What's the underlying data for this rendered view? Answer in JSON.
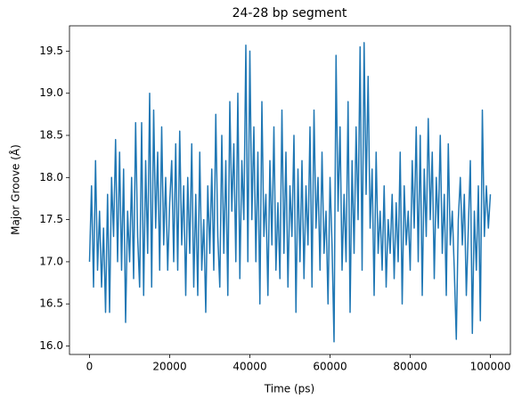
{
  "chart_data": {
    "type": "line",
    "title": "24-28 bp segment",
    "x_label": "Time (ps)",
    "y_label": "Major Groove (Å)",
    "x": [
      0,
      500,
      1000,
      1500,
      2000,
      2500,
      3000,
      3500,
      4000,
      4500,
      5000,
      5500,
      6000,
      6500,
      7000,
      7500,
      8000,
      8500,
      9000,
      9500,
      10000,
      10500,
      11000,
      11500,
      12000,
      12500,
      13000,
      13500,
      14000,
      14500,
      15000,
      15500,
      16000,
      16500,
      17000,
      17500,
      18000,
      18500,
      19000,
      19500,
      20000,
      20500,
      21000,
      21500,
      22000,
      22500,
      23000,
      23500,
      24000,
      24500,
      25000,
      25500,
      26000,
      26500,
      27000,
      27500,
      28000,
      28500,
      29000,
      29500,
      30000,
      30500,
      31000,
      31500,
      32000,
      32500,
      33000,
      33500,
      34000,
      34500,
      35000,
      35500,
      36000,
      36500,
      37000,
      37500,
      38000,
      38500,
      39000,
      39500,
      40000,
      40500,
      41000,
      41500,
      42000,
      42500,
      43000,
      43500,
      44000,
      44500,
      45000,
      45500,
      46000,
      46500,
      47000,
      47500,
      48000,
      48500,
      49000,
      49500,
      50000,
      50500,
      51000,
      51500,
      52000,
      52500,
      53000,
      53500,
      54000,
      54500,
      55000,
      55500,
      56000,
      56500,
      57000,
      57500,
      58000,
      58500,
      59000,
      59500,
      60000,
      60500,
      61000,
      61500,
      62000,
      62500,
      63000,
      63500,
      64000,
      64500,
      65000,
      65500,
      66000,
      66500,
      67000,
      67500,
      68000,
      68500,
      69000,
      69500,
      70000,
      70500,
      71000,
      71500,
      72000,
      72500,
      73000,
      73500,
      74000,
      74500,
      75000,
      75500,
      76000,
      76500,
      77000,
      77500,
      78000,
      78500,
      79000,
      79500,
      80000,
      80500,
      81000,
      81500,
      82000,
      82500,
      83000,
      83500,
      84000,
      84500,
      85000,
      85500,
      86000,
      86500,
      87000,
      87500,
      88000,
      88500,
      89000,
      89500,
      90000,
      90500,
      91000,
      91500,
      92000,
      92500,
      93000,
      93500,
      94000,
      94500,
      95000,
      95500,
      96000,
      96500,
      97000,
      97500,
      98000,
      98500,
      99000,
      99500,
      100000
    ],
    "series": [
      {
        "name": "Major Groove",
        "color": "#1f77b4",
        "values": [
          17.0,
          17.9,
          16.7,
          18.2,
          16.9,
          17.6,
          16.7,
          17.4,
          16.4,
          17.8,
          16.4,
          18.0,
          17.3,
          18.45,
          17.0,
          18.3,
          16.9,
          18.1,
          16.28,
          17.6,
          17.0,
          18.0,
          16.8,
          18.65,
          17.3,
          16.7,
          18.65,
          16.6,
          18.2,
          17.1,
          19.0,
          16.7,
          18.8,
          17.4,
          18.3,
          16.9,
          18.6,
          17.2,
          18.0,
          16.9,
          17.7,
          18.2,
          17.0,
          18.4,
          16.9,
          18.55,
          17.2,
          17.9,
          16.6,
          18.0,
          17.1,
          18.4,
          16.7,
          17.8,
          16.6,
          18.3,
          16.9,
          17.5,
          16.4,
          17.9,
          17.1,
          18.1,
          16.9,
          18.75,
          17.3,
          16.7,
          18.5,
          17.1,
          18.2,
          16.6,
          18.9,
          17.6,
          18.4,
          17.0,
          19.0,
          16.8,
          18.2,
          17.5,
          19.57,
          17.0,
          19.5,
          17.5,
          18.6,
          17.0,
          18.3,
          16.5,
          18.9,
          17.3,
          17.8,
          16.6,
          18.2,
          17.2,
          18.6,
          16.9,
          17.7,
          16.8,
          18.8,
          17.1,
          18.3,
          16.7,
          17.9,
          17.3,
          18.5,
          16.4,
          18.1,
          17.0,
          18.2,
          16.8,
          17.9,
          17.2,
          18.6,
          16.7,
          18.8,
          17.4,
          18.0,
          16.9,
          18.3,
          17.1,
          17.6,
          16.5,
          18.0,
          17.2,
          16.05,
          19.45,
          17.6,
          18.6,
          16.9,
          17.8,
          17.0,
          18.9,
          16.4,
          18.2,
          17.1,
          18.6,
          17.5,
          19.55,
          16.9,
          19.6,
          17.8,
          19.2,
          17.4,
          18.1,
          16.6,
          18.3,
          17.1,
          17.6,
          16.9,
          17.9,
          16.7,
          17.5,
          17.1,
          17.8,
          16.8,
          17.7,
          17.0,
          18.3,
          16.5,
          17.9,
          17.2,
          17.6,
          16.9,
          18.2,
          17.4,
          18.6,
          17.0,
          18.5,
          16.6,
          18.1,
          17.3,
          18.7,
          17.5,
          18.3,
          16.8,
          18.0,
          17.4,
          18.5,
          17.1,
          17.8,
          16.6,
          18.4,
          17.2,
          17.6,
          16.9,
          16.08,
          17.5,
          18.0,
          17.2,
          17.8,
          16.6,
          17.4,
          18.2,
          16.15,
          17.6,
          16.9,
          17.9,
          16.3,
          18.8,
          17.3,
          17.9,
          17.4,
          17.8
        ]
      }
    ],
    "xlim": [
      -5000,
      105000
    ],
    "ylim": [
      15.9,
      19.8
    ],
    "xticks": [
      0,
      20000,
      40000,
      60000,
      80000,
      100000
    ],
    "yticks": [
      {
        "value": 16,
        "label": "16.0"
      },
      16.5,
      {
        "value": 17,
        "label": "17.0"
      },
      17.5,
      {
        "value": 18,
        "label": "18.0"
      },
      18.5,
      {
        "value": 19,
        "label": "19.0"
      },
      19.5
    ],
    "grid": false
  }
}
